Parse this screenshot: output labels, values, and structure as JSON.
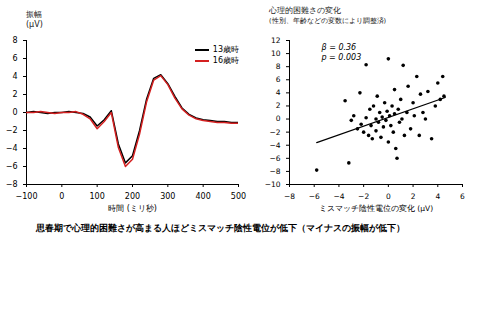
{
  "chart_data": [
    {
      "type": "line",
      "y_label": [
        "振幅",
        "(μV)"
      ],
      "x_label": "時間 (ミリ秒)",
      "x": [
        -100,
        -80,
        -60,
        -40,
        -20,
        0,
        20,
        40,
        60,
        80,
        100,
        120,
        140,
        160,
        180,
        200,
        220,
        240,
        260,
        280,
        300,
        320,
        340,
        360,
        380,
        400,
        420,
        440,
        460,
        480,
        500
      ],
      "series": [
        {
          "name": "13歳時",
          "color": "#000000",
          "values": [
            0,
            0.1,
            0,
            -0.1,
            0,
            0,
            0.1,
            0,
            -0.1,
            -0.5,
            -1.5,
            -0.8,
            0.2,
            -3.5,
            -5.6,
            -4.8,
            -2,
            1.5,
            3.8,
            4.2,
            3.2,
            1.8,
            0.5,
            -0.2,
            -0.6,
            -0.8,
            -0.9,
            -1,
            -1,
            -1.1,
            -1.1
          ]
        },
        {
          "name": "16歳時",
          "color": "#d42020",
          "values": [
            0,
            0,
            0.1,
            0,
            -0.1,
            0,
            0,
            0.1,
            -0.2,
            -0.7,
            -1.8,
            -1,
            0,
            -3.9,
            -6,
            -5.2,
            -2.4,
            1.2,
            3.6,
            4.1,
            3.1,
            1.6,
            0.4,
            -0.3,
            -0.7,
            -0.9,
            -1,
            -1.1,
            -1.1,
            -1.2,
            -1.2
          ]
        }
      ],
      "xlim": [
        -100,
        500
      ],
      "xticks": [
        -100,
        0,
        100,
        200,
        300,
        400,
        500
      ],
      "ylim": [
        -8,
        8
      ],
      "yticks": [
        -8,
        -6,
        -4,
        -2,
        0,
        2,
        4,
        6,
        8
      ],
      "legend": "top-right"
    },
    {
      "type": "scatter",
      "title": "心理的困難さの変化",
      "subtitle": "(性別、年齢などの変数により調整済)",
      "x_label": "ミスマッチ陰性電位の変化 (μV)",
      "annotations": [
        "β = 0.36",
        "p = 0.003"
      ],
      "x": [
        -5.8,
        -3.5,
        -3.2,
        -3,
        -2.8,
        -2.5,
        -2.3,
        -2.2,
        -2,
        -1.8,
        -1.6,
        -1.5,
        -1.4,
        -1.3,
        -1.2,
        -1,
        -1,
        -0.9,
        -0.8,
        -0.7,
        -0.6,
        -0.5,
        -0.4,
        -0.3,
        -0.2,
        -0.1,
        0,
        0,
        0.1,
        0.2,
        0.3,
        0.4,
        0.5,
        0.5,
        0.6,
        0.7,
        0.8,
        0.9,
        1,
        1.1,
        1.2,
        1.3,
        1.5,
        1.6,
        1.8,
        2,
        2.1,
        2.3,
        2.5,
        2.6,
        2.8,
        3,
        3.2,
        3.5,
        3.8,
        4,
        4.2,
        4.4,
        4.5,
        -1.8
      ],
      "values": [
        -7.8,
        2.8,
        -6.7,
        -0.2,
        0.5,
        -1.5,
        4,
        -0.8,
        -2,
        0.2,
        -2.5,
        1.5,
        -1,
        -3,
        2,
        0,
        -1.8,
        3.5,
        -0.5,
        1,
        -2.8,
        0.3,
        -1.2,
        2.5,
        -0.2,
        1.2,
        9.2,
        -3.5,
        0.5,
        -1,
        2,
        -2,
        4.5,
        0.8,
        -4.5,
        -6,
        1.5,
        -0.5,
        3,
        0,
        8.2,
        -2.5,
        1,
        5,
        -1.5,
        2.5,
        0.5,
        6.5,
        -2.5,
        3.8,
        1,
        0,
        4.2,
        -3,
        2,
        5.5,
        3,
        6.5,
        3.5,
        8.3
      ],
      "color": "#000000",
      "marker": "circle",
      "regression": {
        "x": [
          -5.8,
          4.6
        ],
        "values": [
          -3.6,
          3.3
        ],
        "color": "#000000"
      },
      "xlim": [
        -8,
        6
      ],
      "xticks": [
        -8,
        -6,
        -4,
        -2,
        0,
        2,
        4,
        6
      ],
      "ylim": [
        -10,
        12
      ],
      "yticks": [
        -10,
        -8,
        -6,
        -4,
        -2,
        0,
        2,
        4,
        6,
        8,
        10,
        12
      ]
    }
  ],
  "caption": "思春期で心理的困難さが高まる人ほどミスマッチ陰性電位が低下（マイナスの振幅が低下）"
}
